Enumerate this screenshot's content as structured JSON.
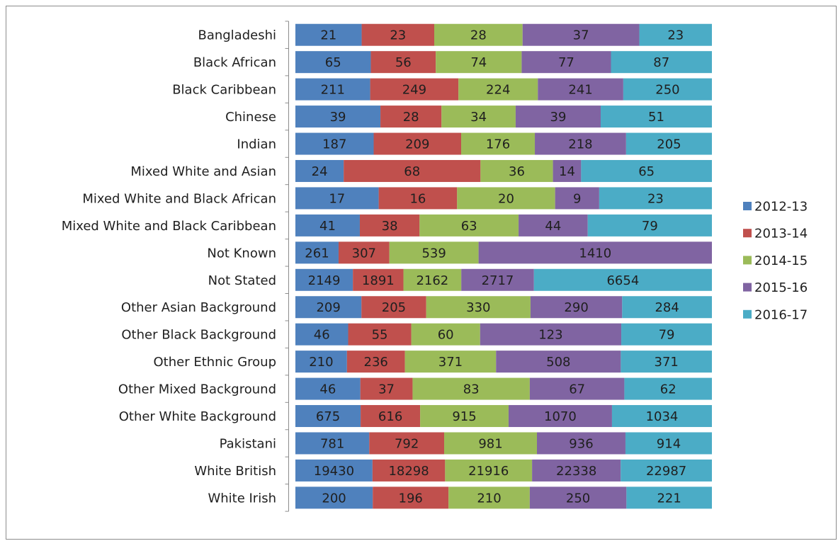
{
  "chart_data": {
    "type": "bar",
    "orientation": "horizontal",
    "stacked": "percent",
    "categories": [
      "Bangladeshi",
      "Black African",
      "Black Caribbean",
      "Chinese",
      "Indian",
      "Mixed White and Asian",
      "Mixed White and Black African",
      "Mixed White and Black Caribbean",
      "Not Known",
      "Not Stated",
      "Other Asian Background",
      "Other Black Background",
      "Other Ethnic Group",
      "Other Mixed Background",
      "Other White Background",
      "Pakistani",
      "White British",
      "White Irish"
    ],
    "series": [
      {
        "name": "2012-13",
        "color": "#4f81bd",
        "values": [
          21,
          65,
          211,
          39,
          187,
          24,
          17,
          41,
          261,
          2149,
          209,
          46,
          210,
          46,
          675,
          781,
          19430,
          200
        ]
      },
      {
        "name": "2013-14",
        "color": "#c0504d",
        "values": [
          23,
          56,
          249,
          28,
          209,
          68,
          16,
          38,
          307,
          1891,
          205,
          55,
          236,
          37,
          616,
          792,
          18298,
          196
        ]
      },
      {
        "name": "2014-15",
        "color": "#9bbb59",
        "values": [
          28,
          74,
          224,
          34,
          176,
          36,
          20,
          63,
          539,
          2162,
          330,
          60,
          371,
          83,
          915,
          981,
          21916,
          210
        ]
      },
      {
        "name": "2015-16",
        "color": "#8064a2",
        "values": [
          37,
          77,
          241,
          39,
          218,
          14,
          9,
          44,
          1410,
          2717,
          290,
          123,
          508,
          67,
          1070,
          936,
          22338,
          250
        ]
      },
      {
        "name": "2016-17",
        "color": "#4bacc6",
        "values": [
          23,
          87,
          250,
          51,
          205,
          65,
          23,
          79,
          null,
          6654,
          284,
          79,
          371,
          62,
          1034,
          914,
          22987,
          221
        ]
      }
    ],
    "legend_position": "right",
    "grid": false
  }
}
